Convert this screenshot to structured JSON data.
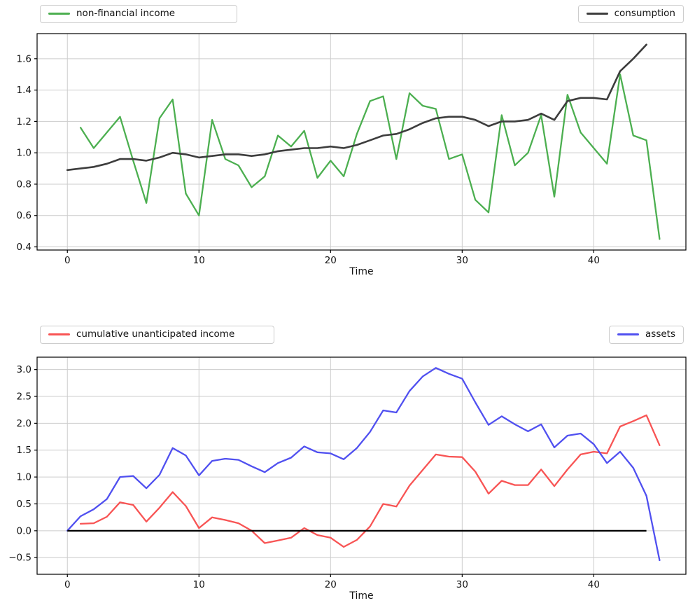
{
  "figure": {
    "background": "#ffffff",
    "style": {
      "grid_color": "#cccccc",
      "spine_color": "#000000",
      "text_color": "#141414"
    }
  },
  "chart_data": [
    {
      "id": "top-chart",
      "type": "line",
      "title": "",
      "xlabel": "Time",
      "ylabel": "",
      "grid": true,
      "time_step": 1,
      "xlim": [
        -2.3,
        47.0
      ],
      "ylim": [
        0.38,
        1.76
      ],
      "xtick_values": [
        0,
        10,
        20,
        30,
        40
      ],
      "xtick_labels": [
        "0",
        "10",
        "20",
        "30",
        "40"
      ],
      "ytick_values": [
        0.4,
        0.6,
        0.8,
        1.0,
        1.2,
        1.4,
        1.6
      ],
      "ytick_labels": [
        "0.4",
        "0.6",
        "0.8",
        "1.0",
        "1.2",
        "1.4",
        "1.6"
      ],
      "legends": [
        {
          "label": "non-financial income",
          "color": "#4caf50",
          "side": "left"
        },
        {
          "label": "consumption",
          "color": "#3d3d3d",
          "side": "right"
        }
      ],
      "series": [
        {
          "name": "non-financial income",
          "color": "#4caf50",
          "line_width": 2.3,
          "x_start": 1,
          "values": [
            1.16,
            1.03,
            1.13,
            1.23,
            0.95,
            0.68,
            1.22,
            1.34,
            0.74,
            0.6,
            1.21,
            0.96,
            0.92,
            0.78,
            0.85,
            1.11,
            1.04,
            1.14,
            0.84,
            0.95,
            0.85,
            1.12,
            1.33,
            1.36,
            0.96,
            1.38,
            1.3,
            1.28,
            0.96,
            0.99,
            0.7,
            0.62,
            1.24,
            0.92,
            1.0,
            1.24,
            0.72,
            1.37,
            1.13,
            1.03,
            0.93,
            1.5,
            1.11,
            1.08,
            0.45
          ]
        },
        {
          "name": "consumption",
          "color": "#3d3d3d",
          "line_width": 2.6,
          "x_start": 0,
          "values": [
            0.89,
            0.9,
            0.91,
            0.93,
            0.96,
            0.96,
            0.95,
            0.97,
            1.0,
            0.99,
            0.97,
            0.98,
            0.99,
            0.99,
            0.98,
            0.99,
            1.01,
            1.02,
            1.03,
            1.03,
            1.04,
            1.03,
            1.05,
            1.08,
            1.11,
            1.12,
            1.15,
            1.19,
            1.22,
            1.23,
            1.23,
            1.21,
            1.17,
            1.2,
            1.2,
            1.21,
            1.25,
            1.21,
            1.33,
            1.35,
            1.35,
            1.34,
            1.52,
            1.6,
            1.69
          ]
        }
      ]
    },
    {
      "id": "bottom-chart",
      "type": "line",
      "title": "",
      "xlabel": "Time",
      "ylabel": "",
      "grid": true,
      "time_step": 1,
      "xlim": [
        -2.3,
        47.0
      ],
      "ylim": [
        -0.81,
        3.23
      ],
      "xtick_values": [
        0,
        10,
        20,
        30,
        40
      ],
      "xtick_labels": [
        "0",
        "10",
        "20",
        "30",
        "40"
      ],
      "ytick_values": [
        -0.5,
        0.0,
        0.5,
        1.0,
        1.5,
        2.0,
        2.5,
        3.0
      ],
      "ytick_labels": [
        "−0.5",
        "0.0",
        "0.5",
        "1.0",
        "1.5",
        "2.0",
        "2.5",
        "3.0"
      ],
      "legends": [
        {
          "label": "cumulative unanticipated income",
          "color": "#f85454",
          "side": "left"
        },
        {
          "label": "assets",
          "color": "#5050f0",
          "side": "right"
        }
      ],
      "series": [
        {
          "name": "cumulative unanticipated income",
          "color": "#f85454",
          "line_width": 2.3,
          "x_start": 1,
          "values": [
            0.13,
            0.14,
            0.26,
            0.53,
            0.48,
            0.17,
            0.43,
            0.72,
            0.46,
            0.05,
            0.25,
            0.2,
            0.14,
            0.0,
            -0.23,
            -0.18,
            -0.13,
            0.05,
            -0.08,
            -0.13,
            -0.3,
            -0.17,
            0.08,
            0.5,
            0.45,
            0.84,
            1.13,
            1.42,
            1.38,
            1.37,
            1.1,
            0.69,
            0.93,
            0.85,
            0.85,
            1.14,
            0.83,
            1.14,
            1.42,
            1.47,
            1.44,
            1.94,
            2.04,
            2.15,
            1.59
          ]
        },
        {
          "name": "assets",
          "color": "#5050f0",
          "line_width": 2.3,
          "x_start": 0,
          "values": [
            0.0,
            0.27,
            0.4,
            0.59,
            1.0,
            1.02,
            0.79,
            1.04,
            1.54,
            1.4,
            1.03,
            1.3,
            1.34,
            1.32,
            1.2,
            1.09,
            1.26,
            1.36,
            1.57,
            1.46,
            1.44,
            1.33,
            1.54,
            1.84,
            2.24,
            2.2,
            2.6,
            2.87,
            3.03,
            2.92,
            2.83,
            2.39,
            1.97,
            2.13,
            1.98,
            1.85,
            1.98,
            1.55,
            1.77,
            1.81,
            1.61,
            1.26,
            1.47,
            1.17,
            0.65,
            -0.55
          ]
        }
      ],
      "hline": {
        "y": 0,
        "x_start": 0,
        "x_end": 44,
        "color": "#000000",
        "line_width": 2.2
      }
    }
  ]
}
